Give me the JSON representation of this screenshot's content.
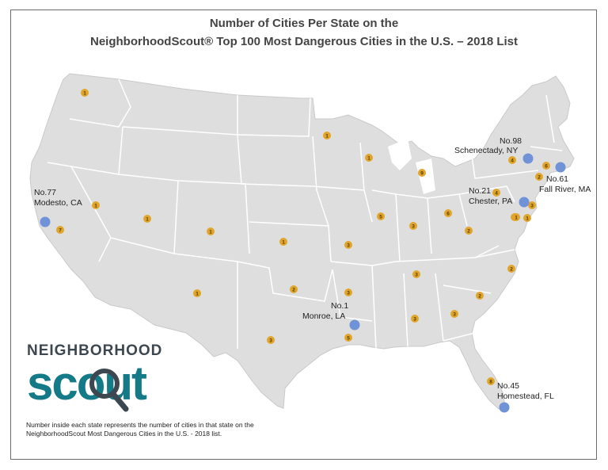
{
  "title": {
    "line1": "Number of Cities Per State on the",
    "line2": "NeighborhoodScout® Top 100 Most Dangerous Cities in the U.S. – 2018 List"
  },
  "logo": {
    "top": "NEIGHBORHOOD",
    "bottom": "scout"
  },
  "note": "Number inside each state represents the number of cities in that state on the NeighborhoodScout Most Dangerous Cities in the U.S. - 2018 list.",
  "colors": {
    "land": "#dedede",
    "border": "#ffffff",
    "badge": "#e0a52a",
    "marker": "#6f93d6",
    "logo_teal": "#147a87",
    "logo_dark": "#3d4750"
  },
  "badges": [
    {
      "state": "WA",
      "count": "1"
    },
    {
      "state": "CA",
      "count": "7"
    },
    {
      "state": "NV",
      "count": "1"
    },
    {
      "state": "UT",
      "count": "1"
    },
    {
      "state": "CO",
      "count": "1"
    },
    {
      "state": "NM",
      "count": "1"
    },
    {
      "state": "TX",
      "count": "3"
    },
    {
      "state": "MN",
      "count": "1"
    },
    {
      "state": "WI",
      "count": "1"
    },
    {
      "state": "MI",
      "count": "9"
    },
    {
      "state": "KS",
      "count": "1"
    },
    {
      "state": "OK",
      "count": "2"
    },
    {
      "state": "MO",
      "count": "3"
    },
    {
      "state": "IL",
      "count": "5"
    },
    {
      "state": "IN",
      "count": "3"
    },
    {
      "state": "OH",
      "count": "6"
    },
    {
      "state": "AR",
      "count": "3"
    },
    {
      "state": "LA",
      "count": "5"
    },
    {
      "state": "TN",
      "count": "3"
    },
    {
      "state": "AL",
      "count": "3"
    },
    {
      "state": "GA",
      "count": "3"
    },
    {
      "state": "SC",
      "count": "2"
    },
    {
      "state": "NC",
      "count": "2"
    },
    {
      "state": "VA",
      "count": "2"
    },
    {
      "state": "WV",
      "count": "1"
    },
    {
      "state": "PA",
      "count": "4"
    },
    {
      "state": "NJ",
      "count": "3"
    },
    {
      "state": "MD",
      "count": "1"
    },
    {
      "state": "DE",
      "count": "1"
    },
    {
      "state": "NY",
      "count": "4"
    },
    {
      "state": "CT",
      "count": "2"
    },
    {
      "state": "MA",
      "count": "6"
    },
    {
      "state": "FL",
      "count": "8"
    }
  ],
  "markers": [
    {
      "label1": "No.98",
      "label2": "Schenectady, NY"
    },
    {
      "label1": "No.61",
      "label2": "Fall River, MA"
    },
    {
      "label1": "No.21",
      "label2": "Chester, PA"
    },
    {
      "label1": "No.77",
      "label2": "Modesto, CA"
    },
    {
      "label1": "No.1",
      "label2": "Monroe, LA"
    },
    {
      "label1": "No.45",
      "label2": "Homestead, FL"
    }
  ]
}
